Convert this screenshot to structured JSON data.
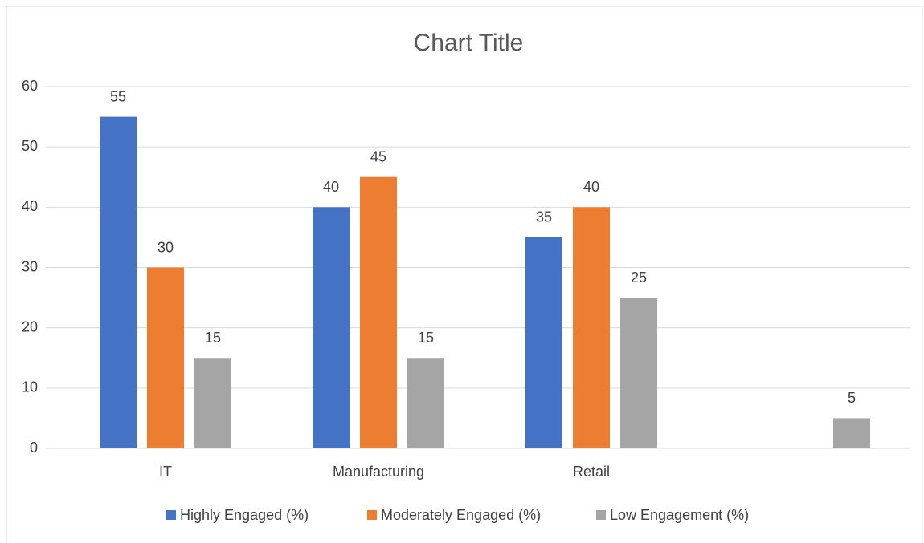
{
  "chart_data": {
    "type": "bar",
    "title": "Chart Title",
    "categories": [
      "IT",
      "Manufacturing",
      "Retail",
      null
    ],
    "series": [
      {
        "name": "Highly Engaged (%)",
        "color": "#4472c4",
        "values": [
          55,
          40,
          35,
          null
        ]
      },
      {
        "name": "Moderately Engaged (%)",
        "color": "#ed7d31",
        "values": [
          30,
          45,
          40,
          null
        ]
      },
      {
        "name": "Low Engagement (%)",
        "color": "#a5a5a5",
        "values": [
          15,
          15,
          25,
          5
        ]
      }
    ],
    "ylim": [
      0,
      60
    ],
    "yticks": [
      0,
      10,
      20,
      30,
      40,
      50,
      60
    ],
    "grid": true,
    "legend": "bottom"
  }
}
